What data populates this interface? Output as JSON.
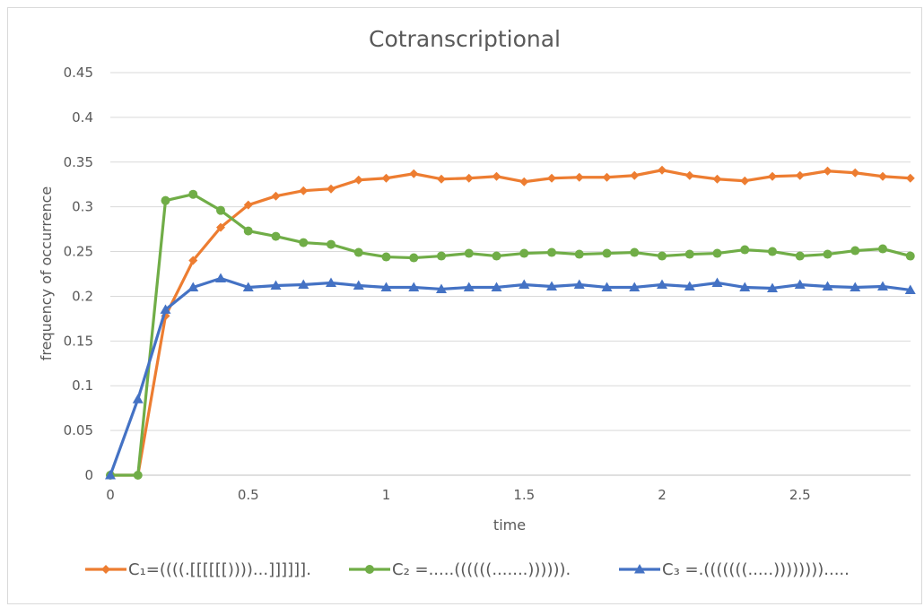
{
  "chart_data": {
    "type": "line",
    "title": "Cotranscriptional",
    "xlabel": "time",
    "ylabel": "frequency of occurrence",
    "xlim": [
      0,
      2.9
    ],
    "ylim": [
      0,
      0.45
    ],
    "x_ticks": [
      "0",
      "0.5",
      "1",
      "1.5",
      "2",
      "2.5"
    ],
    "y_ticks": [
      "0",
      "0.05",
      "0.1",
      "0.15",
      "0.2",
      "0.25",
      "0.3",
      "0.35",
      "0.4",
      "0.45"
    ],
    "grid": true,
    "legend_position": "bottom",
    "x": [
      0,
      0.1,
      0.2,
      0.3,
      0.4,
      0.5,
      0.6,
      0.7,
      0.8,
      0.9,
      1.0,
      1.1,
      1.2,
      1.3,
      1.4,
      1.5,
      1.6,
      1.7,
      1.8,
      1.9,
      2.0,
      2.1,
      2.2,
      2.3,
      2.4,
      2.5,
      2.6,
      2.7,
      2.8,
      2.9
    ],
    "series": [
      {
        "name": "C₁=((((.[[[[[[))))...]]]]]].",
        "color": "#ED7D31",
        "marker": "diamond",
        "values": [
          0,
          0,
          0.178,
          0.24,
          0.277,
          0.302,
          0.312,
          0.318,
          0.32,
          0.33,
          0.332,
          0.337,
          0.331,
          0.332,
          0.334,
          0.328,
          0.332,
          0.333,
          0.333,
          0.335,
          0.341,
          0.335,
          0.331,
          0.329,
          0.334,
          0.335,
          0.34,
          0.338,
          0.334,
          0.332
        ]
      },
      {
        "name": "C₂ =.....((((((.......)))))).",
        "color": "#70AD47",
        "marker": "circle",
        "values": [
          0,
          0,
          0.307,
          0.314,
          0.296,
          0.273,
          0.267,
          0.26,
          0.258,
          0.249,
          0.244,
          0.243,
          0.245,
          0.248,
          0.245,
          0.248,
          0.249,
          0.247,
          0.248,
          0.249,
          0.245,
          0.247,
          0.248,
          0.252,
          0.25,
          0.245,
          0.247,
          0.251,
          0.253,
          0.245
        ]
      },
      {
        "name": "C₃ =.(((((((.....)))))))).....",
        "color": "#4472C4",
        "marker": "triangle",
        "values": [
          0,
          0.085,
          0.185,
          0.21,
          0.22,
          0.21,
          0.212,
          0.213,
          0.215,
          0.212,
          0.21,
          0.21,
          0.208,
          0.21,
          0.21,
          0.213,
          0.211,
          0.213,
          0.21,
          0.21,
          0.213,
          0.211,
          0.215,
          0.21,
          0.209,
          0.213,
          0.211,
          0.21,
          0.211,
          0.207
        ]
      }
    ]
  }
}
